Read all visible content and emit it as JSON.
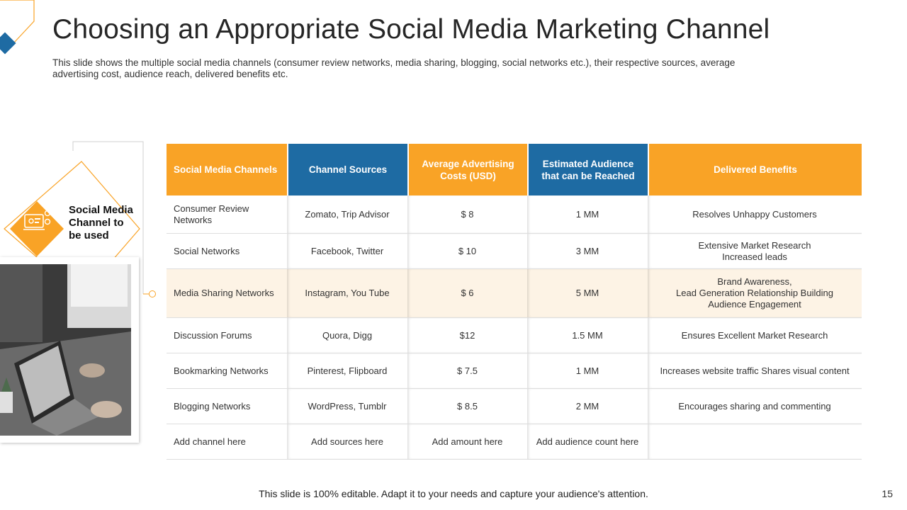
{
  "title": "Choosing an Appropriate Social Media Marketing Channel",
  "subtitle": "This slide shows the multiple social media channels (consumer review networks, media sharing, blogging, social networks etc.), their respective sources, average advertising cost, audience reach, delivered benefits etc.",
  "panel": {
    "label": "Social Media Channel to be used",
    "icon": "social-media-icon"
  },
  "colors": {
    "orange": "#F9A326",
    "blue": "#1E6BA3",
    "highlight_row": "#FDF3E5"
  },
  "table": {
    "headers": [
      "Social Media Channels",
      "Channel Sources",
      "Average  Advertising Costs (USD)",
      "Estimated Audience that can be Reached",
      "Delivered Benefits"
    ],
    "rows": [
      [
        "Consumer Review\nNetworks",
        "Zomato, Trip Advisor",
        "$ 8",
        "1 MM",
        "Resolves Unhappy Customers"
      ],
      [
        "Social Networks",
        "Facebook, Twitter",
        "$ 10",
        "3 MM",
        "Extensive Market Research\nIncreased leads"
      ],
      [
        "Media Sharing Networks",
        "Instagram, You Tube",
        "$ 6",
        "5 MM",
        "Brand Awareness,\nLead Generation Relationship Building\nAudience Engagement"
      ],
      [
        "Discussion Forums",
        "Quora, Digg",
        "$12",
        "1.5 MM",
        "Ensures Excellent Market Research"
      ],
      [
        "Bookmarking Networks",
        "Pinterest, Flipboard",
        "$ 7.5",
        "1 MM",
        "Increases website traffic Shares visual content"
      ],
      [
        "Blogging Networks",
        "WordPress, Tumblr",
        "$ 8.5",
        "2 MM",
        "Encourages sharing and commenting"
      ],
      [
        "Add channel here",
        "Add sources here",
        "Add amount here",
        "Add audience count here",
        ""
      ]
    ]
  },
  "footer": "This slide is 100% editable. Adapt it to your needs and capture your audience's attention.",
  "page_number": "15"
}
